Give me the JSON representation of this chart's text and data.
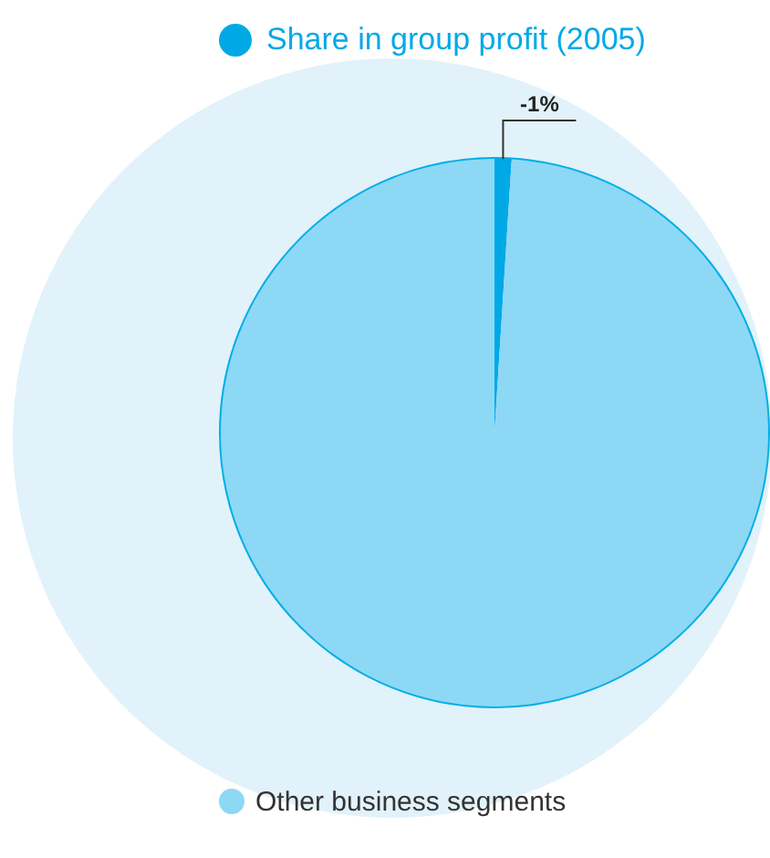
{
  "chart_data": {
    "type": "pie",
    "title": "Share in group profit (2005)",
    "categories": [
      null,
      "Other business segments"
    ],
    "values": [
      1,
      99
    ],
    "colors": [
      "#00a9e6",
      "#8dd8f5"
    ],
    "annotations": [
      "-1%"
    ],
    "legend": "bottom left"
  }
}
